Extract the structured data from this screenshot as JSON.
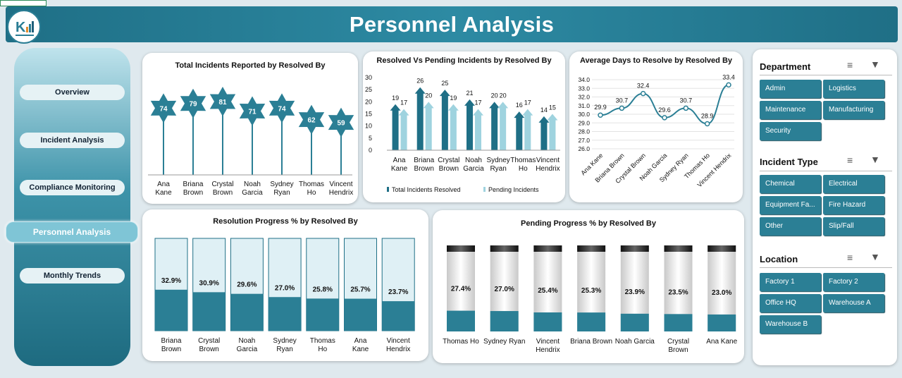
{
  "header": {
    "title": "Personnel Analysis"
  },
  "nav": [
    {
      "label": "Overview",
      "active": false
    },
    {
      "label": "Incident Analysis",
      "active": false
    },
    {
      "label": "Compliance Monitoring",
      "active": false
    },
    {
      "label": "Personnel Analysis",
      "active": true
    },
    {
      "label": "Monthly Trends",
      "active": false
    }
  ],
  "colors": {
    "teal": "#2b7f95",
    "dark_teal": "#1f6f86",
    "light_teal": "#9fd3df",
    "bar_bg": "#dff0f5"
  },
  "chart_data": [
    {
      "type": "bar",
      "title": "Total Incidents Reported by Resolved By",
      "categories": [
        "Ana Kane",
        "Briana Brown",
        "Crystal Brown",
        "Noah Garcia",
        "Sydney Ryan",
        "Thomas Ho",
        "Vincent Hendrix"
      ],
      "values": [
        74,
        79,
        81,
        71,
        74,
        62,
        59
      ]
    },
    {
      "type": "bar",
      "title": "Resolved Vs Pending Incidents by Resolved By",
      "categories": [
        "Ana Kane",
        "Briana Brown",
        "Crystal Brown",
        "Noah Garcia",
        "Sydney Ryan",
        "Thomas Ho",
        "Vincent Hendrix"
      ],
      "yticks": [
        0,
        5,
        10,
        15,
        20,
        25,
        30
      ],
      "ylim": [
        0,
        30
      ],
      "series": [
        {
          "name": "Total Incidents Resolved",
          "values": [
            19,
            26,
            25,
            21,
            20,
            16,
            14
          ]
        },
        {
          "name": "Pending Incidents",
          "values": [
            17,
            20,
            19,
            17,
            20,
            17,
            15
          ]
        }
      ],
      "legend": "bottom"
    },
    {
      "type": "line",
      "title": "Average Days to Resolve by Resolved By",
      "categories": [
        "Ana Kane",
        "Briana Brown",
        "Crystal Brown",
        "Noah Garcia",
        "Sydney Ryan",
        "Thomas Ho",
        "Vincent Hendrix"
      ],
      "values": [
        29.9,
        30.7,
        32.4,
        29.6,
        30.7,
        28.9,
        33.4
      ],
      "value_labels": [
        "29.9",
        "30.7",
        "32.4",
        "29.6",
        "30.7",
        "28.9",
        "33.4"
      ],
      "yticks": [
        "26.0",
        "27.0",
        "28.0",
        "29.0",
        "30.0",
        "31.0",
        "32.0",
        "33.0",
        "34.0"
      ],
      "ylim": [
        26,
        34
      ],
      "grid": true
    },
    {
      "type": "bar",
      "title": "Resolution Progress % by Resolved By",
      "categories": [
        "Briana Brown",
        "Crystal Brown",
        "Noah Garcia",
        "Sydney Ryan",
        "Thomas Ho",
        "Ana Kane",
        "Vincent Hendrix"
      ],
      "values": [
        32.9,
        30.9,
        29.6,
        27.0,
        25.8,
        25.7,
        23.7
      ],
      "value_labels": [
        "32.9%",
        "30.9%",
        "29.6%",
        "27.0%",
        "25.8%",
        "25.7%",
        "23.7%"
      ]
    },
    {
      "type": "bar",
      "title": "Pending Progress % by Resolved By",
      "categories": [
        "Thomas Ho",
        "Sydney Ryan",
        "Vincent Hendrix",
        "Briana Brown",
        "Noah Garcia",
        "Crystal Brown",
        "Ana Kane"
      ],
      "values": [
        27.4,
        27.0,
        25.4,
        25.3,
        23.9,
        23.5,
        23.0
      ],
      "value_labels": [
        "27.4%",
        "27.0%",
        "25.4%",
        "25.3%",
        "23.9%",
        "23.5%",
        "23.0%"
      ]
    }
  ],
  "filters": [
    {
      "title": "Department",
      "items": [
        "Admin",
        "Logistics",
        "Maintenance",
        "Manufacturing",
        "Security"
      ]
    },
    {
      "title": "Incident Type",
      "items": [
        "Chemical",
        "Electrical",
        "Equipment Fa...",
        "Fire Hazard",
        "Other",
        "Slip/Fall"
      ]
    },
    {
      "title": "Location",
      "items": [
        "Factory 1",
        "Factory 2",
        "Office HQ",
        "Warehouse A",
        "Warehouse B"
      ]
    }
  ],
  "icons": {
    "multi_select": "multi-select-icon",
    "clear_filter": "clear-filter-icon"
  }
}
